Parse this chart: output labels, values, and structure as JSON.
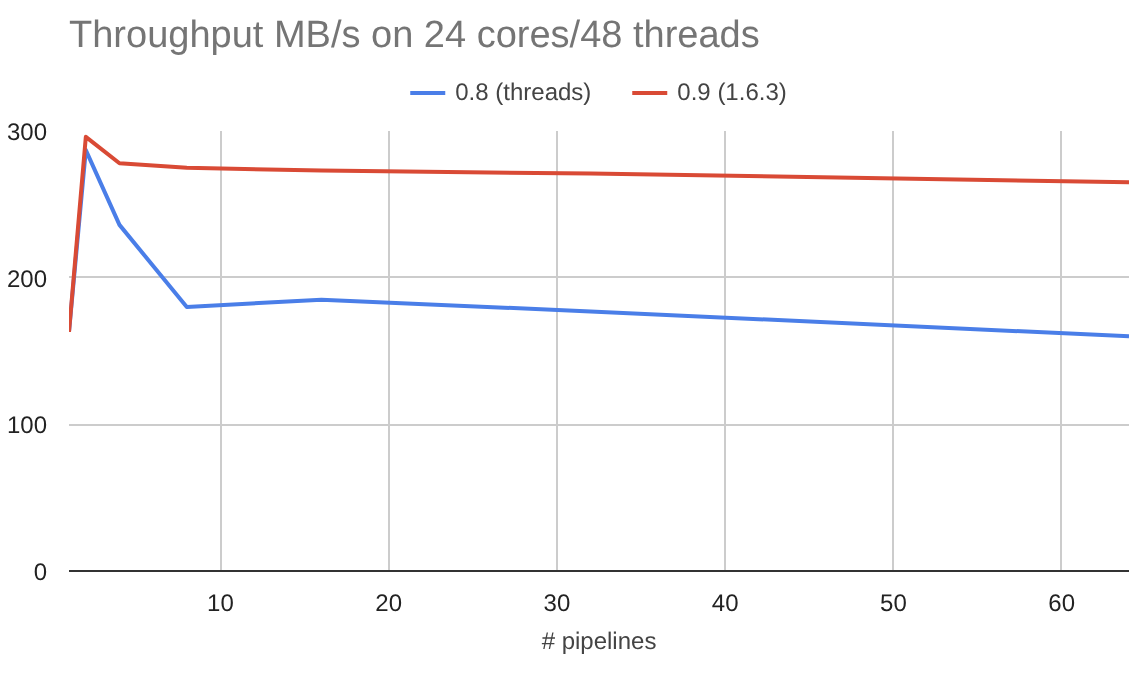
{
  "chart_data": {
    "type": "line",
    "title": "Throughput MB/s on 24 cores/48 threads",
    "xlabel": "# pipelines",
    "x": [
      1,
      2,
      4,
      8,
      16,
      32,
      64
    ],
    "series": [
      {
        "name": "0.8 (threads)",
        "color": "#4a7ee8",
        "values": [
          163,
          287,
          236,
          180,
          185,
          177,
          160
        ]
      },
      {
        "name": "0.9 (1.6.3)",
        "color": "#d94a35",
        "values": [
          163,
          296,
          278,
          275,
          273,
          271,
          265
        ]
      }
    ],
    "xlim": [
      1,
      64
    ],
    "xticks": [
      10,
      20,
      30,
      40,
      50,
      60
    ],
    "ylim": [
      0,
      300
    ],
    "yticks": [
      0,
      100,
      200,
      300
    ],
    "grid": true,
    "legend": "top",
    "marker": "none",
    "line_style": "solid"
  }
}
